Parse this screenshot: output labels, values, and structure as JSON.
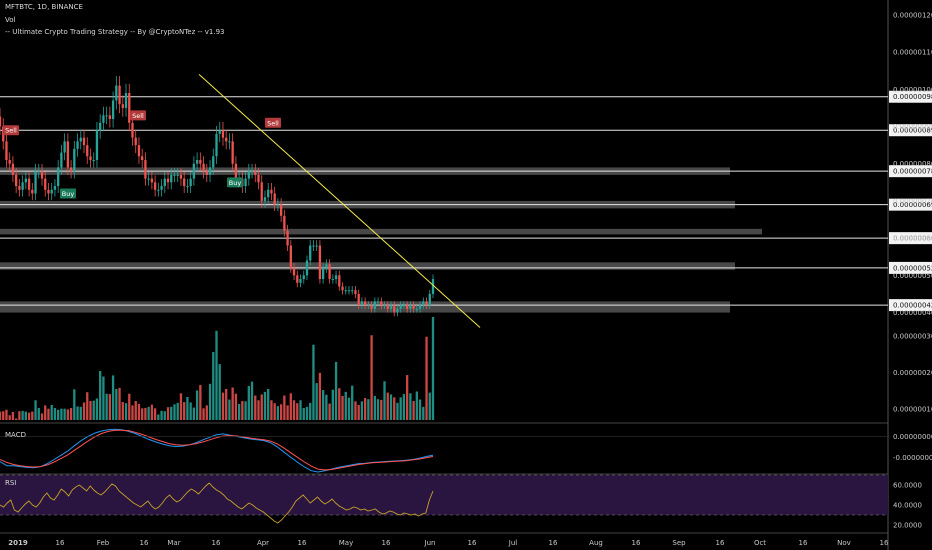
{
  "header": {
    "symbol_line": "MFTBTC, 1D, BINANCE",
    "vol_label": "Vol",
    "strategy_line": "-- Ultimate Crypto Trading Strategy -- By @CryptoNTez -- v1.93"
  },
  "panes": {
    "macd_label": "MACD",
    "rsi_label": "RSI"
  },
  "colors": {
    "background": "#000000",
    "up": "#26a69a",
    "down": "#ef5350",
    "zone": "#555555",
    "trendline": "#f5e94a",
    "macd": "#2196f3",
    "signal": "#ff5252",
    "rsi": "#c9a227",
    "rsi_band": "#2a1540"
  },
  "chart_data": [
    {
      "type": "candlestick",
      "title": "MFTBTC, 1D, BINANCE",
      "x_ticks": [
        "2019",
        "16",
        "Feb",
        "16",
        "Mar",
        "16",
        "Apr",
        "16",
        "May",
        "16",
        "Jun",
        "16",
        "Jul",
        "16",
        "Aug",
        "16",
        "Sep",
        "16",
        "Oct",
        "16",
        "Nov",
        "16"
      ],
      "y_ticks": [
        "0.00000120",
        "0.00000110",
        "0.00000100",
        "0.00000090",
        "0.00000080",
        "0.00000070",
        "0.00000060",
        "0.00000050",
        "0.00000040"
      ],
      "ylim": [
        3.8e-07,
        1.24e-06
      ],
      "price_tags": [
        "0.00000098",
        "0.00000089",
        "0.00000078",
        "0.00000069",
        "0.00000060",
        "0.00000052",
        "0.00000042"
      ],
      "horizontal_levels": [
        9.8e-07,
        8.9e-07,
        7.8e-07,
        6.9e-07,
        6e-07,
        5.2e-07,
        4.2e-07
      ],
      "gray_zones": [
        [
          7.7e-07,
          7.9e-07,
          "Apr-10"
        ],
        [
          6.8e-07,
          7e-07,
          "Apr-12"
        ],
        [
          6.1e-07,
          6.25e-07,
          "Apr-18"
        ],
        [
          5.15e-07,
          5.35e-07,
          "Apr-12"
        ],
        [
          4e-07,
          4.3e-07,
          "Apr-10"
        ]
      ],
      "signals": [
        {
          "label": "Sell",
          "date": "Jan-01",
          "price": 8.9e-07
        },
        {
          "label": "Buy",
          "date": "Jan-16",
          "price": 7.2e-07
        },
        {
          "label": "Sell",
          "date": "Feb-09",
          "price": 9.3e-07
        },
        {
          "label": "Buy",
          "date": "Mar-14",
          "price": 7.5e-07
        },
        {
          "label": "Sell",
          "date": "Mar-26",
          "price": 9.1e-07
        }
      ],
      "trendline": [
        [
          "Mar-04",
          1.04e-06
        ],
        [
          "Jun-19",
          3.6e-07
        ]
      ],
      "closes": [
        9e-07,
        8.6e-07,
        8.1e-07,
        8e-07,
        7.7e-07,
        7.4e-07,
        7.3e-07,
        7.5e-07,
        7.6e-07,
        7.3e-07,
        7.2e-07,
        7.8e-07,
        7.8e-07,
        7.6e-07,
        7.3e-07,
        7.2e-07,
        7.3e-07,
        7.4e-07,
        7.9e-07,
        8.3e-07,
        8.6e-07,
        7.9e-07,
        7.8e-07,
        8.4e-07,
        8.6e-07,
        8.7e-07,
        8.5e-07,
        8.2e-07,
        8.1e-07,
        8.1e-07,
        8.9e-07,
        9.1e-07,
        9.3e-07,
        9.3e-07,
        9.2e-07,
        9.7e-07,
        1.01e-06,
        9.6e-07,
        9.5e-07,
        9.9e-07,
        9.1e-07,
        8.7e-07,
        8.5e-07,
        8.2e-07,
        8.1e-07,
        7.6e-07,
        7.6e-07,
        7.5e-07,
        7.3e-07,
        7.3e-07,
        7.4e-07,
        7.6e-07,
        7.5e-07,
        7.7e-07,
        7.7e-07,
        7.7e-07,
        7.6e-07,
        7.4e-07,
        7.4e-07,
        7.6e-07,
        8e-07,
        8.1e-07,
        8e-07,
        7.8e-07,
        7.7e-07,
        7.9e-07,
        8.2e-07,
        8.8e-07,
        8.9e-07,
        8.7e-07,
        8.6e-07,
        8.6e-07,
        8e-07,
        7.6e-07,
        7.6e-07,
        7.4e-07,
        7.6e-07,
        7.8e-07,
        7.8e-07,
        7.7e-07,
        7.5e-07,
        7e-07,
        7.1e-07,
        7.3e-07,
        7.2e-07,
        6.9e-07,
        6.9e-07,
        6.6e-07,
        6.2e-07,
        5.8e-07,
        5.2e-07,
        5e-07,
        4.8e-07,
        4.9e-07,
        5e-07,
        5.4e-07,
        5.8e-07,
        5.8e-07,
        5.8e-07,
        4.9e-07,
        5.2e-07,
        5.3e-07,
        4.9e-07,
        4.9e-07,
        5e-07,
        4.7e-07,
        4.6e-07,
        4.6e-07,
        4.6e-07,
        4.6e-07,
        4.5e-07,
        4.2e-07,
        4.3e-07,
        4.2e-07,
        4.2e-07,
        4.1e-07,
        4.3e-07,
        4.3e-07,
        4.2e-07,
        4.2e-07,
        4.1e-07,
        4.2e-07,
        4e-07,
        4.1e-07,
        4.2e-07,
        4.2e-07,
        4.1e-07,
        4.2e-07,
        4.1e-07,
        4.1e-07,
        4.2e-07,
        4.3e-07,
        4.2e-07,
        4.5e-07,
        4.9e-07
      ]
    },
    {
      "type": "bar",
      "title": "Vol",
      "y_ticks": [
        "0.00000030",
        "0.00000020",
        "0.00000010"
      ],
      "ylim": [
        7e-08,
        3.3e-07
      ],
      "values": [
        9.3e-08,
        9.4e-08,
        9.8e-08,
        8.3e-08,
        9.2e-08,
        7.4e-08,
        9.4e-08,
        9.5e-08,
        9.3e-08,
        9e-08,
        9.3e-08,
        1.24e-07,
        1.03e-07,
        8.8e-08,
        1.1e-07,
        1.01e-07,
        1.11e-07,
        1.03e-07,
        9.8e-08,
        1.01e-07,
        1.01e-07,
        9.9e-08,
        1.03e-07,
        1.54e-07,
        1.07e-07,
        1.06e-07,
        1.18e-07,
        1.46e-07,
        1.22e-07,
        1.23e-07,
        1.29e-07,
        2.04e-07,
        1.89e-07,
        1.42e-07,
        1.41e-07,
        1.92e-07,
        1.55e-07,
        1.58e-07,
        1.19e-07,
        1.16e-07,
        1.42e-07,
        1.1e-07,
        1.22e-07,
        1.14e-07,
        1.02e-07,
        1.03e-07,
        1.06e-07,
        1.12e-07,
        1.02e-07,
        8.5e-08,
        9.5e-08,
        9.4e-08,
        1.05e-07,
        1.06e-07,
        1.13e-07,
        1.17e-07,
        1.43e-07,
        1.19e-07,
        1.33e-07,
        1.18e-07,
        1.04e-07,
        1.51e-07,
        1.66e-07,
        1.02e-07,
        1.1e-07,
        1.69e-07,
        2.56e-07,
        3.14e-07,
        2.23e-07,
        1.45e-07,
        1.55e-07,
        1.26e-07,
        1.59e-07,
        1.42e-07,
        1.14e-07,
        1.22e-07,
        1.21e-07,
        1.63e-07,
        1.75e-07,
        1.37e-07,
        1.24e-07,
        1.4e-07,
        1.47e-07,
        1.55e-07,
        1.24e-07,
        1.16e-07,
        1.08e-07,
        1.13e-07,
        1.37e-07,
        1.1e-07,
        1.43e-07,
        1.24e-07,
        1.16e-07,
        1.24e-07,
        1.03e-07,
        1.06e-07,
        1.17e-07,
        2.76e-07,
        1.71e-07,
        1.99e-07,
        1.52e-07,
        1.39e-07,
        1.15e-07,
        1.53e-07,
        2.29e-07,
        1.57e-07,
        1.36e-07,
        1.47e-07,
        1.31e-07,
        1.64e-07,
        1.21e-07,
        1.11e-07,
        1.21e-07,
        1.3e-07,
        1.27e-07,
        3.02e-07,
        1.36e-07,
        1.27e-07,
        1.25e-07,
        1.76e-07,
        1.45e-07,
        1.4e-07,
        1.32e-07,
        1.17e-07,
        1.32e-07,
        1.41e-07,
        1.93e-07,
        1.43e-07,
        1.22e-07,
        1.48e-07,
        1.26e-07,
        1.06e-07,
        2.98e-07,
        1.45e-07,
        3.52e-07
      ]
    },
    {
      "type": "line",
      "title": "MACD",
      "y_ticks": [
        "0.00000000",
        "-0.00000005"
      ],
      "ylim": [
        -8.5e-08,
        2.5e-08
      ],
      "series": [
        {
          "values": [
            -6e-08,
            -7e-08,
            -7e-08,
            -7.2e-08,
            -7.4e-08,
            -7.5e-08,
            -7.2e-08,
            -6.5e-08,
            -5.5e-08,
            -4.5e-08,
            -3.5e-08,
            -2.2e-08,
            -1e-08,
            0,
            8e-09,
            1.3e-08,
            1.6e-08,
            1.7e-08,
            1.6e-08,
            1.2e-08,
            7e-09,
            0,
            -7e-09,
            -1.3e-08,
            -1.8e-08,
            -2.2e-08,
            -2.4e-08,
            -2.3e-08,
            -2e-08,
            -1.5e-08,
            -8e-09,
            -2e-09,
            4e-09,
            6e-09,
            3e-09,
            0,
            -3e-09,
            -6e-09,
            -8e-09,
            -1e-08,
            -1.5e-08,
            -2.5e-08,
            -3.8e-08,
            -5e-08,
            -6.2e-08,
            -7.3e-08,
            -8.2e-08,
            -8.5e-08,
            -8.2e-08,
            -7.8e-08,
            -7.4e-08,
            -7.1e-08,
            -6.8e-08,
            -6.5e-08,
            -6.4e-08,
            -6.2e-08,
            -6.1e-08,
            -6e-08,
            -5.9e-08,
            -5.8e-08,
            -5.7e-08,
            -5.5e-08,
            -5.2e-08,
            -4.8e-08,
            -4.5e-08
          ]
        },
        {
          "values": [
            -5.5e-08,
            -6.2e-08,
            -6.7e-08,
            -7e-08,
            -7.2e-08,
            -7.3e-08,
            -7.2e-08,
            -6.8e-08,
            -6.1e-08,
            -5.3e-08,
            -4.4e-08,
            -3.3e-08,
            -2.2e-08,
            -1.1e-08,
            -1e-09,
            7e-09,
            1.2e-08,
            1.5e-08,
            1.5e-08,
            1.4e-08,
            1e-08,
            5e-09,
            -1e-09,
            -7e-09,
            -1.2e-08,
            -1.7e-08,
            -2e-08,
            -2.1e-08,
            -2e-08,
            -1.7e-08,
            -1.3e-08,
            -8e-09,
            -3e-09,
            1e-09,
            2e-09,
            1e-09,
            -1e-09,
            -4e-09,
            -6e-09,
            -8e-09,
            -1.1e-08,
            -1.8e-08,
            -2.8e-08,
            -3.9e-08,
            -5e-08,
            -6.1e-08,
            -7.1e-08,
            -7.8e-08,
            -8e-08,
            -7.9e-08,
            -7.6e-08,
            -7.3e-08,
            -7e-08,
            -6.7e-08,
            -6.5e-08,
            -6.3e-08,
            -6.2e-08,
            -6.1e-08,
            -6e-08,
            -5.9e-08,
            -5.8e-08,
            -5.6e-08,
            -5.4e-08,
            -5.1e-08,
            -4.8e-08
          ]
        }
      ]
    },
    {
      "type": "line",
      "title": "RSI",
      "y_ticks": [
        "60.0000",
        "40.0000",
        "20.0000"
      ],
      "ylim": [
        15,
        70
      ],
      "bands": [
        30,
        70
      ],
      "values": [
        40,
        38,
        42,
        45,
        35,
        33,
        37,
        41,
        44,
        40,
        38,
        42,
        48,
        52,
        47,
        45,
        50,
        56,
        53,
        49,
        55,
        58,
        60,
        57,
        54,
        59,
        55,
        52,
        50,
        53,
        57,
        61,
        59,
        54,
        51,
        48,
        45,
        42,
        40,
        38,
        41,
        44,
        39,
        36,
        38,
        42,
        47,
        50,
        46,
        43,
        45,
        49,
        53,
        56,
        54,
        51,
        55,
        59,
        62,
        58,
        55,
        53,
        50,
        46,
        44,
        41,
        38,
        36,
        39,
        42,
        40,
        37,
        35,
        33,
        30,
        27,
        24,
        22,
        25,
        29,
        33,
        38,
        44,
        47,
        50,
        46,
        42,
        45,
        48,
        44,
        41,
        43,
        46,
        42,
        39,
        37,
        35,
        36,
        38,
        37,
        35,
        36,
        34,
        35,
        36,
        33,
        31,
        32,
        34,
        33,
        31,
        30,
        32,
        31,
        30,
        31,
        29,
        31,
        32,
        45,
        54
      ]
    }
  ]
}
